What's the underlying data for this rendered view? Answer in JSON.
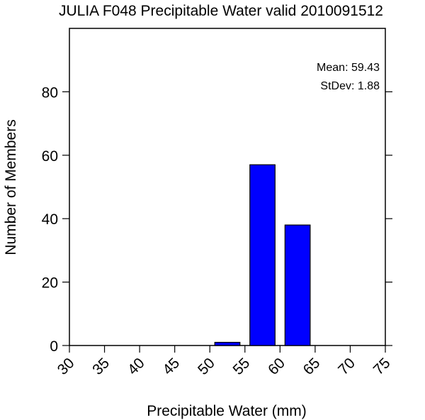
{
  "chart_data": {
    "type": "bar",
    "title": "JULIA F048 Precipitable Water valid 2010091512",
    "xlabel": "Precipitable Water (mm)",
    "ylabel": "Number of Members",
    "xlim": [
      30,
      75
    ],
    "ylim": [
      0,
      100
    ],
    "xticks": [
      "30",
      "35",
      "40",
      "45",
      "50",
      "55",
      "60",
      "65",
      "70",
      "75"
    ],
    "yticks": [
      "0",
      "20",
      "40",
      "60",
      "80"
    ],
    "bins": [
      {
        "from": 50,
        "to": 55,
        "value": 1
      },
      {
        "from": 55,
        "to": 60,
        "value": 57
      },
      {
        "from": 60,
        "to": 65,
        "value": 38
      }
    ],
    "bar_color": "#0000ff",
    "stats": {
      "mean": "Mean: 59.43",
      "stdev": "StDev: 1.88"
    },
    "grid": false
  }
}
